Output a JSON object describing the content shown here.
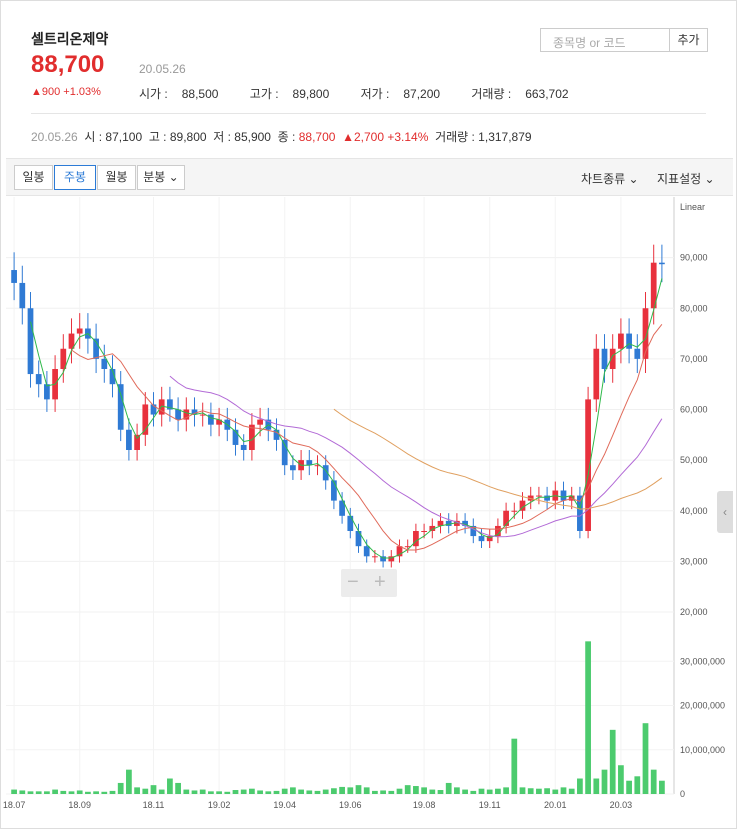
{
  "stock": {
    "name": "셀트리온제약",
    "price": "88,700",
    "date": "20.05.26",
    "change": "900 +1.03%",
    "open_label": "시가 :",
    "open": "88,500",
    "high_label": "고가 :",
    "high": "89,800",
    "low_label": "저가 :",
    "low": "87,200",
    "volume_label": "거래량 :",
    "volume": "663,702"
  },
  "search": {
    "placeholder": "종목명 or 코드",
    "add_label": "추가"
  },
  "info": {
    "date": "20.05.26",
    "open": "시 : 87,100",
    "high": "고 : 89,800",
    "low": "저 : 85,900",
    "close_label": "종 :",
    "close": "88,700",
    "change": "2,700 +3.14%",
    "volume": "거래량 : 1,317,879"
  },
  "toolbar": {
    "daily": "일봉",
    "weekly": "주봉",
    "monthly": "월봉",
    "minute": "분봉",
    "chart_type": "차트종류",
    "indicator": "지표설정"
  },
  "colors": {
    "up": "#e8313d",
    "down": "#2f7ad4",
    "ma5": "#2fb94a",
    "ma20": "#e06a5a",
    "ma60": "#b26ad6",
    "ma120": "#e0a060",
    "volume": "#4ccb6e"
  },
  "chart_data": {
    "type": "candlestick",
    "scale_label": "Linear",
    "price_ticks": [
      "90,000",
      "80,000",
      "70,000",
      "60,000",
      "50,000",
      "40,000",
      "30,000",
      "20,000"
    ],
    "price_range": [
      20000,
      100000
    ],
    "volume_ticks": [
      "30,000,000",
      "20,000,000",
      "10,000,000",
      "0"
    ],
    "volume_range": [
      0,
      40000000
    ],
    "x_ticks": [
      "18.07",
      "18.09",
      "18.11",
      "19.02",
      "19.04",
      "19.06",
      "19.08",
      "19.11",
      "20.01",
      "20.03"
    ],
    "closes": [
      85000,
      80000,
      67000,
      65000,
      62000,
      68000,
      72000,
      75000,
      76000,
      74000,
      70000,
      68000,
      65000,
      56000,
      52000,
      55000,
      61000,
      59000,
      62000,
      60000,
      58000,
      60000,
      59000,
      59000,
      57000,
      58000,
      56000,
      53000,
      52000,
      57000,
      58000,
      56000,
      54000,
      49000,
      48000,
      50000,
      49000,
      49000,
      46000,
      42000,
      39000,
      36000,
      33000,
      31000,
      31000,
      30000,
      31000,
      33000,
      33000,
      36000,
      36000,
      37000,
      38000,
      37000,
      38000,
      37000,
      35000,
      34000,
      35000,
      37000,
      40000,
      40000,
      42000,
      43000,
      43000,
      42000,
      44000,
      42000,
      43000,
      36000,
      62000,
      72000,
      68000,
      72000,
      75000,
      72000,
      70000,
      80000,
      89000,
      88700
    ],
    "highs_pct": null,
    "volume": [
      1.0,
      0.8,
      0.6,
      0.6,
      0.6,
      1.0,
      0.7,
      0.6,
      0.8,
      0.5,
      0.6,
      0.5,
      0.7,
      2.5,
      5.5,
      1.5,
      1.2,
      2.0,
      1.0,
      3.5,
      2.5,
      1.0,
      0.8,
      1.0,
      0.6,
      0.6,
      0.5,
      0.9,
      1.0,
      1.2,
      0.8,
      0.6,
      0.7,
      1.2,
      1.5,
      1.0,
      0.8,
      0.7,
      1.0,
      1.3,
      1.6,
      1.5,
      2.0,
      1.5,
      0.7,
      0.8,
      0.7,
      1.2,
      2.0,
      1.8,
      1.5,
      1.0,
      0.9,
      2.5,
      1.5,
      1.0,
      0.7,
      1.2,
      1.0,
      1.2,
      1.5,
      12.5,
      1.5,
      1.3,
      1.2,
      1.3,
      1.0,
      1.5,
      1.2,
      3.5,
      34.5,
      3.5,
      5.5,
      14.5,
      6.5,
      3.0,
      4.0,
      16.0,
      5.5,
      3.0
    ]
  }
}
